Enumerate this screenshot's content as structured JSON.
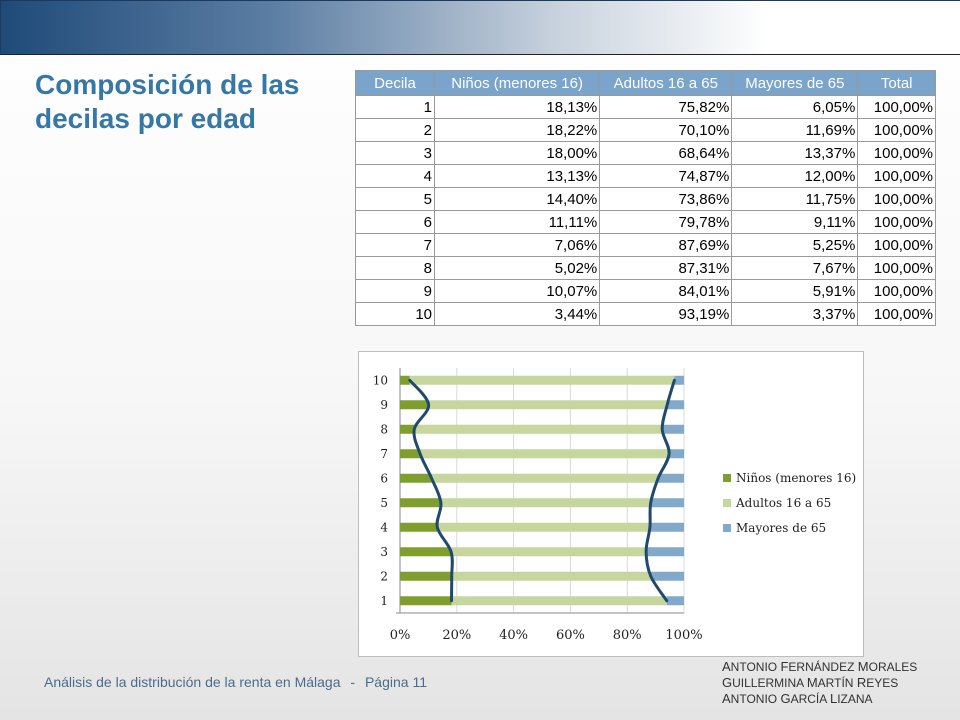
{
  "slide": {
    "title": "Composición de las decilas por edad",
    "footer": {
      "text": "Análisis de la distribución de la renta en Málaga",
      "separator": "-",
      "page": "Página 11"
    },
    "authors": [
      {
        "first": "Antonio",
        "last": "Fernández Morales"
      },
      {
        "first": "Guillermina",
        "last": "Martín Reyes"
      },
      {
        "first": "Antonio",
        "last": "García Lizana"
      }
    ],
    "accent_color": "#3577a6",
    "header_color": "#7aa4ca"
  },
  "table": {
    "headers": [
      "Decila",
      "Niños (menores 16)",
      "Adultos 16 a 65",
      "Mayores de 65",
      "Total"
    ],
    "rows": [
      [
        "1",
        "18,13%",
        "75,82%",
        "6,05%",
        "100,00%"
      ],
      [
        "2",
        "18,22%",
        "70,10%",
        "11,69%",
        "100,00%"
      ],
      [
        "3",
        "18,00%",
        "68,64%",
        "13,37%",
        "100,00%"
      ],
      [
        "4",
        "13,13%",
        "74,87%",
        "12,00%",
        "100,00%"
      ],
      [
        "5",
        "14,40%",
        "73,86%",
        "11,75%",
        "100,00%"
      ],
      [
        "6",
        "11,11%",
        "79,78%",
        "9,11%",
        "100,00%"
      ],
      [
        "7",
        "7,06%",
        "87,69%",
        "5,25%",
        "100,00%"
      ],
      [
        "8",
        "5,02%",
        "87,31%",
        "7,67%",
        "100,00%"
      ],
      [
        "9",
        "10,07%",
        "84,01%",
        "5,91%",
        "100,00%"
      ],
      [
        "10",
        "3,44%",
        "93,19%",
        "3,37%",
        "100,00%"
      ]
    ]
  },
  "chart_data": {
    "type": "bar",
    "stacked": true,
    "orientation": "horizontal",
    "categories": [
      "1",
      "2",
      "3",
      "4",
      "5",
      "6",
      "7",
      "8",
      "9",
      "10"
    ],
    "x_ticks": [
      "0%",
      "20%",
      "40%",
      "60%",
      "80%",
      "100%"
    ],
    "xlim": [
      0,
      100
    ],
    "legend_position": "right",
    "series": [
      {
        "name": "Niños (menores 16)",
        "color": "#7e9f2e",
        "values": [
          18.13,
          18.22,
          18.0,
          13.13,
          14.4,
          11.11,
          7.06,
          5.02,
          10.07,
          3.44
        ]
      },
      {
        "name": "Adultos 16 a 65",
        "color": "#c6d69d",
        "values": [
          75.82,
          70.1,
          68.64,
          74.87,
          73.86,
          79.78,
          87.69,
          87.31,
          84.01,
          93.19
        ]
      },
      {
        "name": "Mayores de 65",
        "color": "#82a9c9",
        "values": [
          6.05,
          11.69,
          13.37,
          12.0,
          11.75,
          9.11,
          5.25,
          7.67,
          5.91,
          3.37
        ]
      }
    ],
    "trend_line_color": "#1f4a6e"
  }
}
